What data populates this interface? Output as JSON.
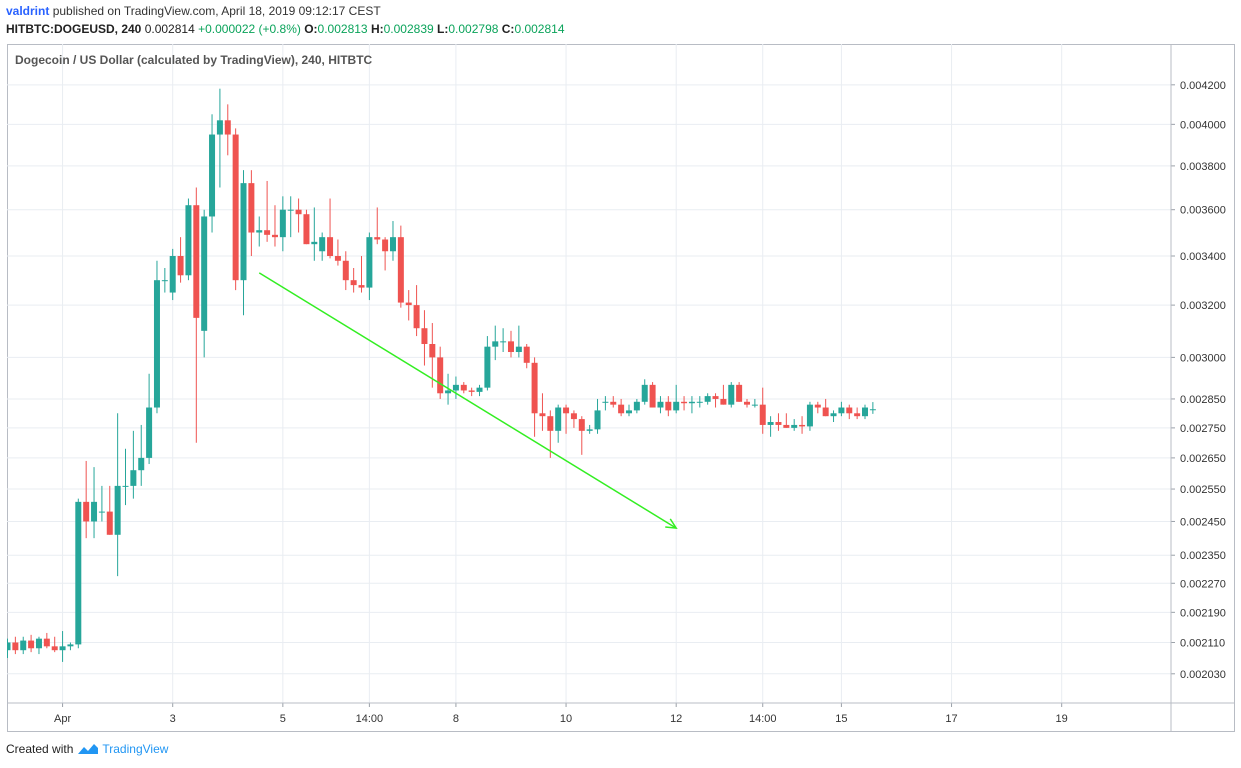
{
  "header": {
    "user": "valdrint",
    "published_text": "published on TradingView.com, April 18, 2019 09:12:17 CEST",
    "symbol": "HITBTC:DOGEUSD, 240",
    "last_price": "0.002814",
    "change": "+0.000022 (+0.8%)",
    "o_label": "O:",
    "o_value": "0.002813",
    "h_label": "H:",
    "h_value": "0.002839",
    "l_label": "L:",
    "l_value": "0.002798",
    "c_label": "C:",
    "c_value": "0.002814"
  },
  "footer": {
    "created_with": "Created with",
    "brand": "TradingView"
  },
  "colors": {
    "up": "#26a69a",
    "down": "#ef5350",
    "arrow": "#33ee22",
    "grid": "#e9edf2"
  },
  "chart_data": {
    "type": "candlestick",
    "title": "Dogecoin / US Dollar (calculated by TradingView), 240, HITBTC",
    "y_scale": "log",
    "ylim": [
      0.00198,
      0.00432
    ],
    "y_ticks": [
      "0.004200",
      "0.004000",
      "0.003800",
      "0.003600",
      "0.003400",
      "0.003200",
      "0.003000",
      "0.002850",
      "0.002750",
      "0.002650",
      "0.002550",
      "0.002450",
      "0.002350",
      "0.002270",
      "0.002190",
      "0.002110",
      "0.002030"
    ],
    "x_ticks": [
      {
        "bar": 7,
        "label": "Apr"
      },
      {
        "bar": 21,
        "label": "3"
      },
      {
        "bar": 35,
        "label": "5"
      },
      {
        "bar": 46,
        "label": "14:00"
      },
      {
        "bar": 57,
        "label": "8"
      },
      {
        "bar": 71,
        "label": "10"
      },
      {
        "bar": 85,
        "label": "12"
      },
      {
        "bar": 96,
        "label": "14:00"
      },
      {
        "bar": 106,
        "label": "15"
      },
      {
        "bar": 120,
        "label": "17"
      },
      {
        "bar": 134,
        "label": "19"
      }
    ],
    "bar_count": 144,
    "ohlc": [
      [
        0.00209,
        0.00212,
        0.00207,
        0.00211
      ],
      [
        0.00211,
        0.002125,
        0.00208,
        0.00209
      ],
      [
        0.00209,
        0.002125,
        0.00208,
        0.002115
      ],
      [
        0.002115,
        0.00213,
        0.002085,
        0.002095
      ],
      [
        0.002095,
        0.002125,
        0.00208,
        0.00212
      ],
      [
        0.00212,
        0.002135,
        0.002095,
        0.0021
      ],
      [
        0.0021,
        0.002125,
        0.002085,
        0.00209
      ],
      [
        0.00209,
        0.00214,
        0.00206,
        0.0021
      ],
      [
        0.0021,
        0.00211,
        0.00209,
        0.002105
      ],
      [
        0.002105,
        0.00252,
        0.002095,
        0.00251
      ],
      [
        0.00251,
        0.00264,
        0.0024,
        0.00245
      ],
      [
        0.00245,
        0.00262,
        0.0024,
        0.00251
      ],
      [
        0.00248,
        0.00256,
        0.00245,
        0.00248
      ],
      [
        0.00248,
        0.00256,
        0.00241,
        0.00241
      ],
      [
        0.00241,
        0.0028,
        0.00229,
        0.00256
      ],
      [
        0.00256,
        0.00268,
        0.0025,
        0.00256
      ],
      [
        0.00256,
        0.00274,
        0.00252,
        0.00261
      ],
      [
        0.00261,
        0.00276,
        0.00256,
        0.00265
      ],
      [
        0.00265,
        0.00294,
        0.00263,
        0.00282
      ],
      [
        0.00282,
        0.00338,
        0.0028,
        0.0033
      ],
      [
        0.0033,
        0.00335,
        0.00325,
        0.0033
      ],
      [
        0.00325,
        0.00343,
        0.00322,
        0.0034
      ],
      [
        0.0034,
        0.00348,
        0.00329,
        0.00332
      ],
      [
        0.00332,
        0.00365,
        0.0033,
        0.00362
      ],
      [
        0.00362,
        0.0037,
        0.0027,
        0.00315
      ],
      [
        0.0031,
        0.0036,
        0.003,
        0.00357
      ],
      [
        0.00357,
        0.00405,
        0.0035,
        0.00395
      ],
      [
        0.00395,
        0.00418,
        0.0037,
        0.00402
      ],
      [
        0.00402,
        0.0041,
        0.00385,
        0.00395
      ],
      [
        0.00395,
        0.00398,
        0.00326,
        0.0033
      ],
      [
        0.0033,
        0.00378,
        0.00316,
        0.00372
      ],
      [
        0.00372,
        0.00378,
        0.0034,
        0.0035
      ],
      [
        0.0035,
        0.00357,
        0.00344,
        0.00351
      ],
      [
        0.00351,
        0.00373,
        0.00346,
        0.00349
      ],
      [
        0.00349,
        0.00362,
        0.00344,
        0.00348
      ],
      [
        0.00348,
        0.00366,
        0.00342,
        0.0036
      ],
      [
        0.0036,
        0.00366,
        0.00348,
        0.0036
      ],
      [
        0.0036,
        0.00365,
        0.0035,
        0.00358
      ],
      [
        0.00358,
        0.0036,
        0.00345,
        0.00345
      ],
      [
        0.00345,
        0.00361,
        0.00338,
        0.00346
      ],
      [
        0.00342,
        0.0035,
        0.00338,
        0.00348
      ],
      [
        0.00348,
        0.00365,
        0.00339,
        0.0034
      ],
      [
        0.0034,
        0.00347,
        0.00336,
        0.00338
      ],
      [
        0.00338,
        0.00342,
        0.00326,
        0.0033
      ],
      [
        0.0033,
        0.00335,
        0.00325,
        0.00328
      ],
      [
        0.00328,
        0.0034,
        0.00325,
        0.00327
      ],
      [
        0.00327,
        0.0035,
        0.00322,
        0.00348
      ],
      [
        0.00348,
        0.00361,
        0.00345,
        0.00347
      ],
      [
        0.00347,
        0.00348,
        0.00334,
        0.00342
      ],
      [
        0.00342,
        0.00355,
        0.00338,
        0.00348
      ],
      [
        0.00348,
        0.00353,
        0.00319,
        0.00321
      ],
      [
        0.00321,
        0.00326,
        0.00314,
        0.0032
      ],
      [
        0.0032,
        0.00328,
        0.00308,
        0.00311
      ],
      [
        0.00311,
        0.00318,
        0.00297,
        0.00305
      ],
      [
        0.00305,
        0.00313,
        0.00289,
        0.003
      ],
      [
        0.003,
        0.00304,
        0.00285,
        0.00287
      ],
      [
        0.00287,
        0.00294,
        0.00283,
        0.00288
      ],
      [
        0.00288,
        0.00293,
        0.00285,
        0.0029
      ],
      [
        0.0029,
        0.00291,
        0.00287,
        0.00288
      ],
      [
        0.00288,
        0.00289,
        0.00286,
        0.002875
      ],
      [
        0.002875,
        0.0029,
        0.00286,
        0.00289
      ],
      [
        0.00289,
        0.00308,
        0.00288,
        0.00304
      ],
      [
        0.00304,
        0.00312,
        0.00299,
        0.00306
      ],
      [
        0.00306,
        0.00311,
        0.00302,
        0.00306
      ],
      [
        0.00306,
        0.0031,
        0.003,
        0.00302
      ],
      [
        0.00302,
        0.00312,
        0.003,
        0.00304
      ],
      [
        0.00304,
        0.00305,
        0.00296,
        0.00298
      ],
      [
        0.00298,
        0.003,
        0.00272,
        0.0028
      ],
      [
        0.0028,
        0.00287,
        0.00274,
        0.00279
      ],
      [
        0.00279,
        0.00281,
        0.00265,
        0.00274
      ],
      [
        0.00274,
        0.00283,
        0.0027,
        0.00282
      ],
      [
        0.00282,
        0.00283,
        0.00273,
        0.0028
      ],
      [
        0.0028,
        0.00281,
        0.00275,
        0.00278
      ],
      [
        0.00278,
        0.00279,
        0.00266,
        0.00274
      ],
      [
        0.00274,
        0.00276,
        0.00273,
        0.002745
      ],
      [
        0.002745,
        0.00285,
        0.00273,
        0.00281
      ],
      [
        0.00284,
        0.00286,
        0.00281,
        0.00284
      ],
      [
        0.00284,
        0.00286,
        0.00282,
        0.00283
      ],
      [
        0.00283,
        0.00285,
        0.00279,
        0.0028
      ],
      [
        0.0028,
        0.00283,
        0.00279,
        0.00281
      ],
      [
        0.00281,
        0.00285,
        0.0028,
        0.00284
      ],
      [
        0.00284,
        0.00292,
        0.00283,
        0.0029
      ],
      [
        0.0029,
        0.00291,
        0.00282,
        0.00282
      ],
      [
        0.00282,
        0.00286,
        0.0028,
        0.00284
      ],
      [
        0.00284,
        0.00286,
        0.00279,
        0.00281
      ],
      [
        0.00281,
        0.0029,
        0.0028,
        0.00284
      ],
      [
        0.00284,
        0.00286,
        0.00281,
        0.002835
      ],
      [
        0.002835,
        0.00286,
        0.0028,
        0.00284
      ],
      [
        0.00284,
        0.00286,
        0.00282,
        0.00284
      ],
      [
        0.00284,
        0.00287,
        0.00283,
        0.00286
      ],
      [
        0.00286,
        0.00287,
        0.00282,
        0.00285
      ],
      [
        0.00285,
        0.0029,
        0.00283,
        0.00283
      ],
      [
        0.00283,
        0.00291,
        0.00282,
        0.0029
      ],
      [
        0.0029,
        0.00291,
        0.00284,
        0.00284
      ],
      [
        0.00284,
        0.00285,
        0.00282,
        0.00283
      ],
      [
        0.00283,
        0.00285,
        0.00282,
        0.00283
      ],
      [
        0.00283,
        0.00289,
        0.00273,
        0.00276
      ],
      [
        0.00276,
        0.00279,
        0.00272,
        0.00277
      ],
      [
        0.00277,
        0.0028,
        0.00274,
        0.00276
      ],
      [
        0.00276,
        0.0028,
        0.00275,
        0.00275
      ],
      [
        0.00275,
        0.00278,
        0.00274,
        0.00276
      ],
      [
        0.00276,
        0.00279,
        0.00273,
        0.002755
      ],
      [
        0.002755,
        0.00284,
        0.00274,
        0.00283
      ],
      [
        0.00283,
        0.00284,
        0.0028,
        0.00282
      ],
      [
        0.00282,
        0.00285,
        0.00279,
        0.00279
      ],
      [
        0.00279,
        0.00281,
        0.00277,
        0.0028
      ],
      [
        0.0028,
        0.00284,
        0.00279,
        0.00282
      ],
      [
        0.00282,
        0.00283,
        0.00278,
        0.0028
      ],
      [
        0.0028,
        0.00282,
        0.00278,
        0.00279
      ],
      [
        0.00279,
        0.00283,
        0.00278,
        0.00282
      ],
      [
        0.002813,
        0.002839,
        0.002798,
        0.002814
      ]
    ],
    "trend_arrow": {
      "from": {
        "bar": 32,
        "price": 0.00333
      },
      "to": {
        "bar": 85,
        "price": 0.00243
      },
      "color": "#33ee22"
    }
  }
}
